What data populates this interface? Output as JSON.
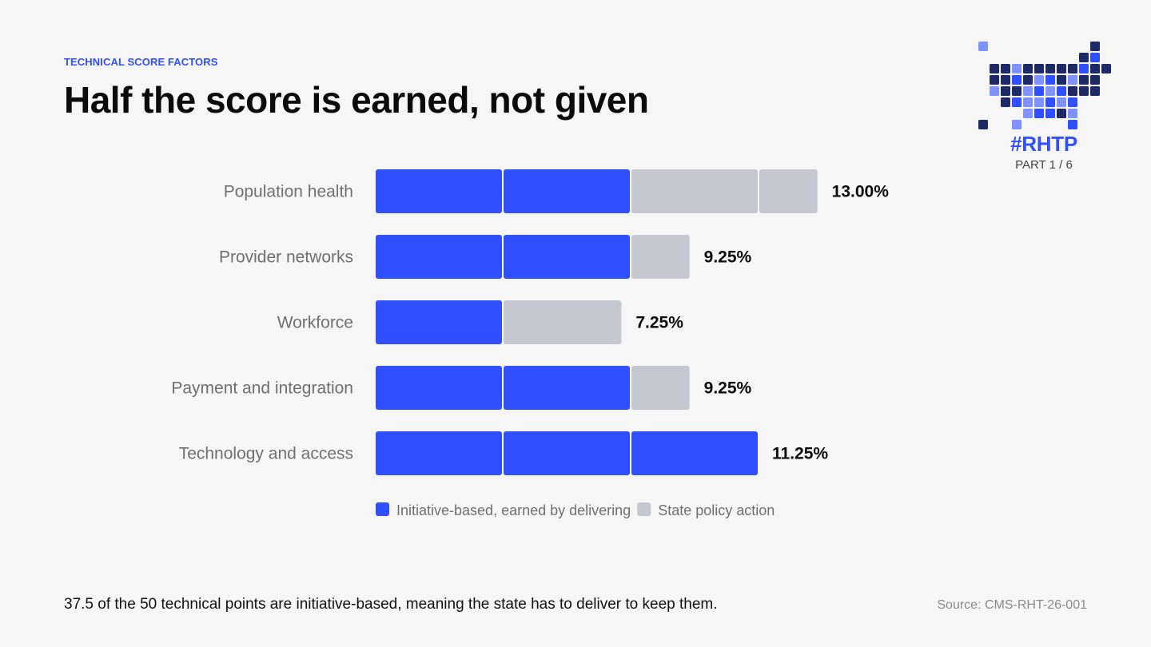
{
  "header": {
    "eyebrow": "TECHNICAL SCORE FACTORS",
    "title": "Half the score is earned, not given"
  },
  "brand": {
    "hashtag": "#RHTP",
    "part": "PART 1 / 6"
  },
  "colors": {
    "accent": "#3050ff",
    "gray": "#c5c8d0",
    "ink": "#0b0b0b",
    "label": "#707070",
    "navy": "#1e2a66",
    "light_blue": "#7f92ff"
  },
  "chart_data": {
    "type": "bar",
    "orientation": "horizontal",
    "stacked": true,
    "categories": [
      "Population health",
      "Provider networks",
      "Workforce",
      "Payment and integration",
      "Technology and access"
    ],
    "series": [
      {
        "name": "Initiative-based, earned by delivering",
        "color": "#3050ff",
        "values": [
          7.5,
          7.5,
          3.75,
          7.5,
          11.25
        ]
      },
      {
        "name": "State policy action",
        "color": "#c5c8d0",
        "values": [
          5.5,
          1.75,
          3.5,
          1.75,
          0
        ]
      }
    ],
    "total_labels": [
      "13.00%",
      "9.25%",
      "7.25%",
      "9.25%",
      "11.25%"
    ],
    "legend": {
      "position": "bottom"
    },
    "grid": false
  },
  "footer": {
    "note": "37.5 of the 50 technical points are initiative-based, meaning the state has to deliver to keep them.",
    "source": "Source: CMS-RHT-26-001"
  }
}
